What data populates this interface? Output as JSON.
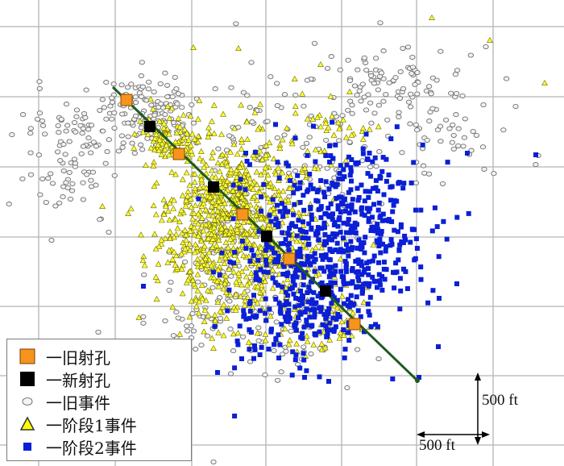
{
  "chart_data": {
    "type": "scatter",
    "grid": true,
    "series": [
      {
        "name": "旧射孔",
        "color": "#f7941d",
        "points": [
          [
            157,
            124
          ],
          [
            222,
            191
          ],
          [
            301,
            266
          ],
          [
            359,
            321
          ],
          [
            440,
            402
          ]
        ]
      },
      {
        "name": "新射孔",
        "color": "#000000",
        "points": [
          [
            186,
            157
          ],
          [
            265,
            232
          ],
          [
            331,
            293
          ],
          [
            404,
            361
          ]
        ]
      },
      {
        "name": "旧事件",
        "color": "#e6e6e6",
        "clusters": "white-gray circles"
      },
      {
        "name": "阶段1事件",
        "color": "#e8e800",
        "clusters": "yellow triangles"
      },
      {
        "name": "阶段2事件",
        "color": "#0a1fd6",
        "clusters": "blue squares"
      }
    ],
    "well_path": [
      [
        140,
        108
      ],
      [
        518,
        472
      ]
    ]
  },
  "legend": [
    {
      "label": "一旧射孔",
      "icon": "orange-square"
    },
    {
      "label": "一新射孔",
      "icon": "black-square"
    },
    {
      "label": "一旧事件",
      "icon": "gray-circle"
    },
    {
      "label": "一阶段1事件",
      "icon": "yellow-triangle"
    },
    {
      "label": "一阶段2事件",
      "icon": "blue-square"
    }
  ],
  "scale": {
    "vertical_label": "500 ft",
    "horizontal_label": "500 ft"
  }
}
